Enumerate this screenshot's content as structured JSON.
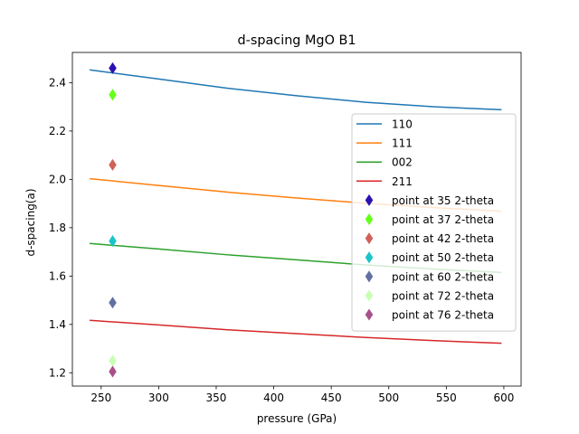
{
  "chart_data": {
    "type": "line",
    "title": "d-spacing MgO B1",
    "xlabel": "pressure (GPa)",
    "ylabel": "d-spacing(a)",
    "xlim": [
      225,
      615
    ],
    "ylim": [
      1.145,
      2.525
    ],
    "xticks": [
      250,
      300,
      350,
      400,
      450,
      500,
      550,
      600
    ],
    "yticks": [
      1.2,
      1.4,
      1.6,
      1.8,
      2.0,
      2.2,
      2.4
    ],
    "xtick_labels": [
      "250",
      "300",
      "350",
      "400",
      "450",
      "500",
      "550",
      "600"
    ],
    "ytick_labels": [
      "1.2",
      "1.4",
      "1.6",
      "1.8",
      "2.0",
      "2.2",
      "2.4"
    ],
    "grid": false,
    "legend_position": "center-right",
    "line_series": [
      {
        "name": "110",
        "color": "#1f77b4",
        "x": [
          240,
          300,
          360,
          420,
          480,
          540,
          598
        ],
        "y": [
          2.453,
          2.415,
          2.377,
          2.346,
          2.319,
          2.3,
          2.288
        ]
      },
      {
        "name": "111",
        "color": "#ff7f0e",
        "x": [
          240,
          300,
          360,
          420,
          480,
          540,
          598
        ],
        "y": [
          2.003,
          1.975,
          1.947,
          1.923,
          1.901,
          1.883,
          1.868
        ]
      },
      {
        "name": "002",
        "color": "#2ca02c",
        "x": [
          240,
          300,
          360,
          420,
          480,
          540,
          598
        ],
        "y": [
          1.735,
          1.712,
          1.688,
          1.667,
          1.646,
          1.629,
          1.615
        ]
      },
      {
        "name": "211",
        "color": "#d62728",
        "x": [
          240,
          300,
          360,
          420,
          480,
          540,
          598
        ],
        "y": [
          1.417,
          1.398,
          1.378,
          1.362,
          1.346,
          1.333,
          1.322
        ]
      }
    ],
    "point_series": [
      {
        "name": "point at 35 2-theta",
        "color": "#2a12b2",
        "x": 260,
        "y": 2.46
      },
      {
        "name": "point at 37 2-theta",
        "color": "#66ff1a",
        "x": 260,
        "y": 2.35
      },
      {
        "name": "point at 42 2-theta",
        "color": "#d0625a",
        "x": 260,
        "y": 2.06
      },
      {
        "name": "point at 50 2-theta",
        "color": "#1ac4c9",
        "x": 260,
        "y": 1.745
      },
      {
        "name": "point at 60 2-theta",
        "color": "#6270a0",
        "x": 260,
        "y": 1.49
      },
      {
        "name": "point at 72 2-theta",
        "color": "#c8ffb4",
        "x": 260,
        "y": 1.25
      },
      {
        "name": "point at 76 2-theta",
        "color": "#a8508a",
        "x": 260,
        "y": 1.205
      }
    ]
  }
}
